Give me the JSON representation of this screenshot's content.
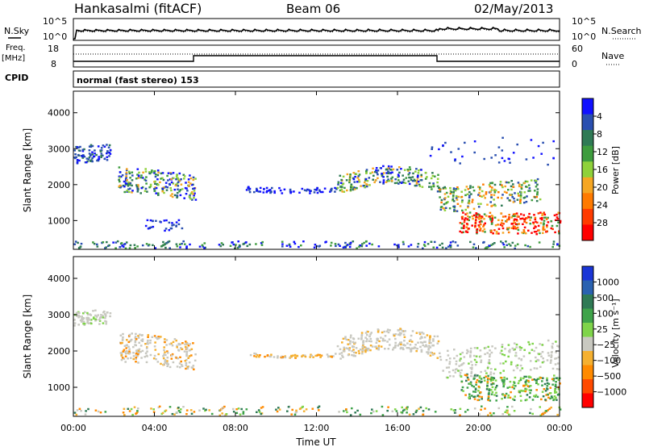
{
  "header": {
    "station": "Hankasalmi (fitACF)",
    "beam": "Beam 06",
    "date": "02/May/2013"
  },
  "status_panels": {
    "nsky_label": "N.Sky",
    "nsky_ticks": [
      "10^5",
      "10^0"
    ],
    "nsearch_label": "N.Search",
    "nsearch_ticks": [
      "10^5",
      "10^0"
    ],
    "freq_label_top": "Freq.",
    "freq_label_unit": "[MHz]",
    "freq_ticks": [
      "18",
      "8"
    ],
    "nave_label": "Nave",
    "nave_ticks": [
      "60",
      "0"
    ],
    "cpid_label": "CPID",
    "cpid_text": "normal (fast stereo) 153"
  },
  "chart_data": [
    {
      "type": "heatmap",
      "name": "power",
      "ylabel": "Slant Range [km]",
      "yticks": [
        1000,
        2000,
        3000,
        4000
      ],
      "ylim": [
        200,
        4600
      ],
      "xlim_hours": [
        0,
        24
      ],
      "xtick_labels": [
        "00:00",
        "04:00",
        "08:00",
        "12:00",
        "16:00",
        "20:00",
        "00:00"
      ],
      "colorbar_label": "Power [dB]",
      "colorbar_ticks": [
        "4",
        "8",
        "12",
        "16",
        "20",
        "24",
        "28"
      ],
      "colorbar_colors": [
        "#1010ff",
        "#2a4fb0",
        "#2f7a55",
        "#3e9c3e",
        "#8fd13a",
        "#f5a623",
        "#ff7a00",
        "#ff3b00",
        "#ff0000"
      ]
    },
    {
      "type": "heatmap",
      "name": "velocity",
      "ylabel": "Slant Range [km]",
      "yticks": [
        1000,
        2000,
        3000,
        4000
      ],
      "ylim": [
        200,
        4600
      ],
      "xlim_hours": [
        0,
        24
      ],
      "xtick_labels": [
        "00:00",
        "04:00",
        "08:00",
        "12:00",
        "16:00",
        "20:00",
        "00:00"
      ],
      "xlabel": "Time UT",
      "colorbar_label": "Velocity [m s⁻¹]",
      "colorbar_ticks": [
        "1000",
        "500",
        "100",
        "25",
        "−25",
        "−100",
        "−500",
        "−1000"
      ],
      "colorbar_colors": [
        "#1a35d6",
        "#2a62b0",
        "#2f7a55",
        "#3fa34a",
        "#7fd44a",
        "#c8c8c0",
        "#f5b030",
        "#ff8a00",
        "#ff4a00",
        "#ff0000"
      ]
    }
  ]
}
